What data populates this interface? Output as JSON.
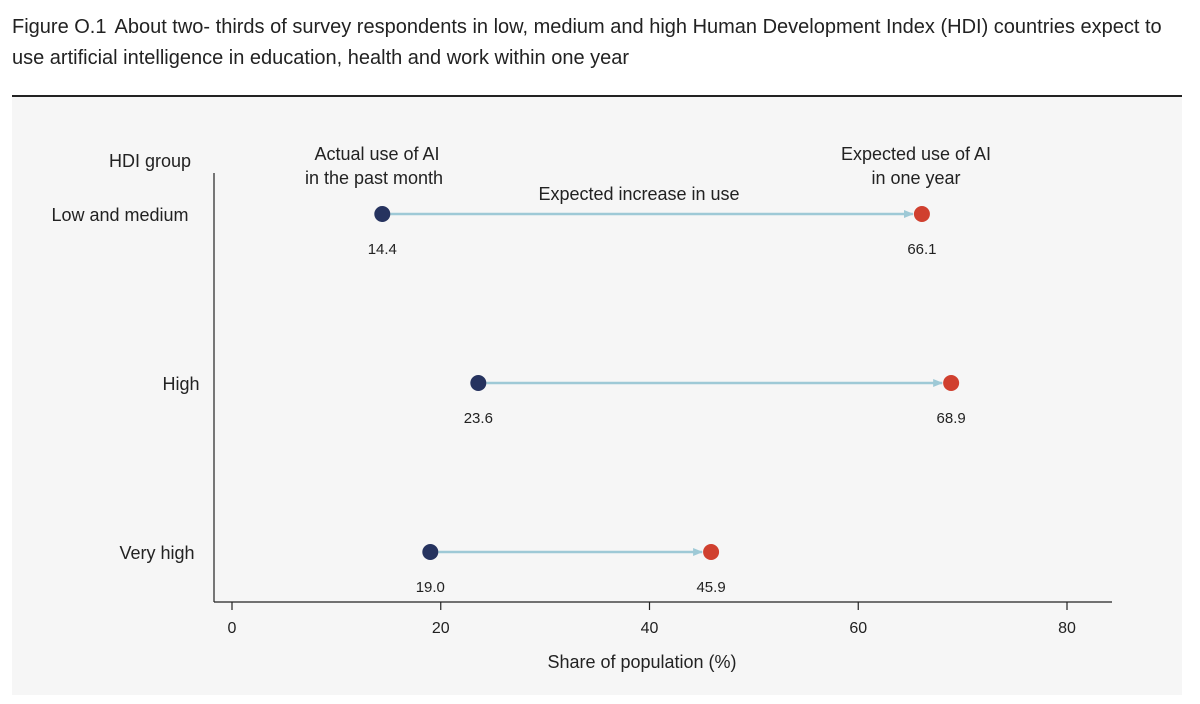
{
  "figure": {
    "label": "Figure O.1",
    "title": "About two-   thirds of survey respondents in low, medium and high Human Development Index (HDI) countries expect to use artificial intelligence in education, health and work within one year"
  },
  "chart_data": {
    "type": "dumbbell",
    "y_axis_title": "HDI group",
    "xlabel": "Share of population (%)",
    "xlim": [
      0,
      84
    ],
    "xticks": [
      0,
      20,
      40,
      60,
      80
    ],
    "categories": [
      "Low and medium",
      "High",
      "Very high"
    ],
    "series": [
      {
        "name": "Actual use of AI in the past month",
        "values": [
          14.4,
          23.6,
          19.0
        ]
      },
      {
        "name": "Expected use of AI in one year",
        "values": [
          66.1,
          68.9,
          45.9
        ]
      }
    ],
    "value_labels": {
      "actual": [
        "14.4",
        "23.6",
        "19.0"
      ],
      "expected": [
        "66.1",
        "68.9",
        "45.9"
      ]
    },
    "annotations": {
      "actual_header": [
        "Actual use of AI",
        "in the past month"
      ],
      "expected_header": [
        "Expected use of AI",
        "in one year"
      ],
      "arrow_label": "Expected increase in use"
    },
    "colors": {
      "actual": "#26335f",
      "expected": "#d0402f",
      "arrow": "#9ec9d6",
      "background": "#f6f6f6",
      "axis": "#222222"
    },
    "grid": false
  }
}
